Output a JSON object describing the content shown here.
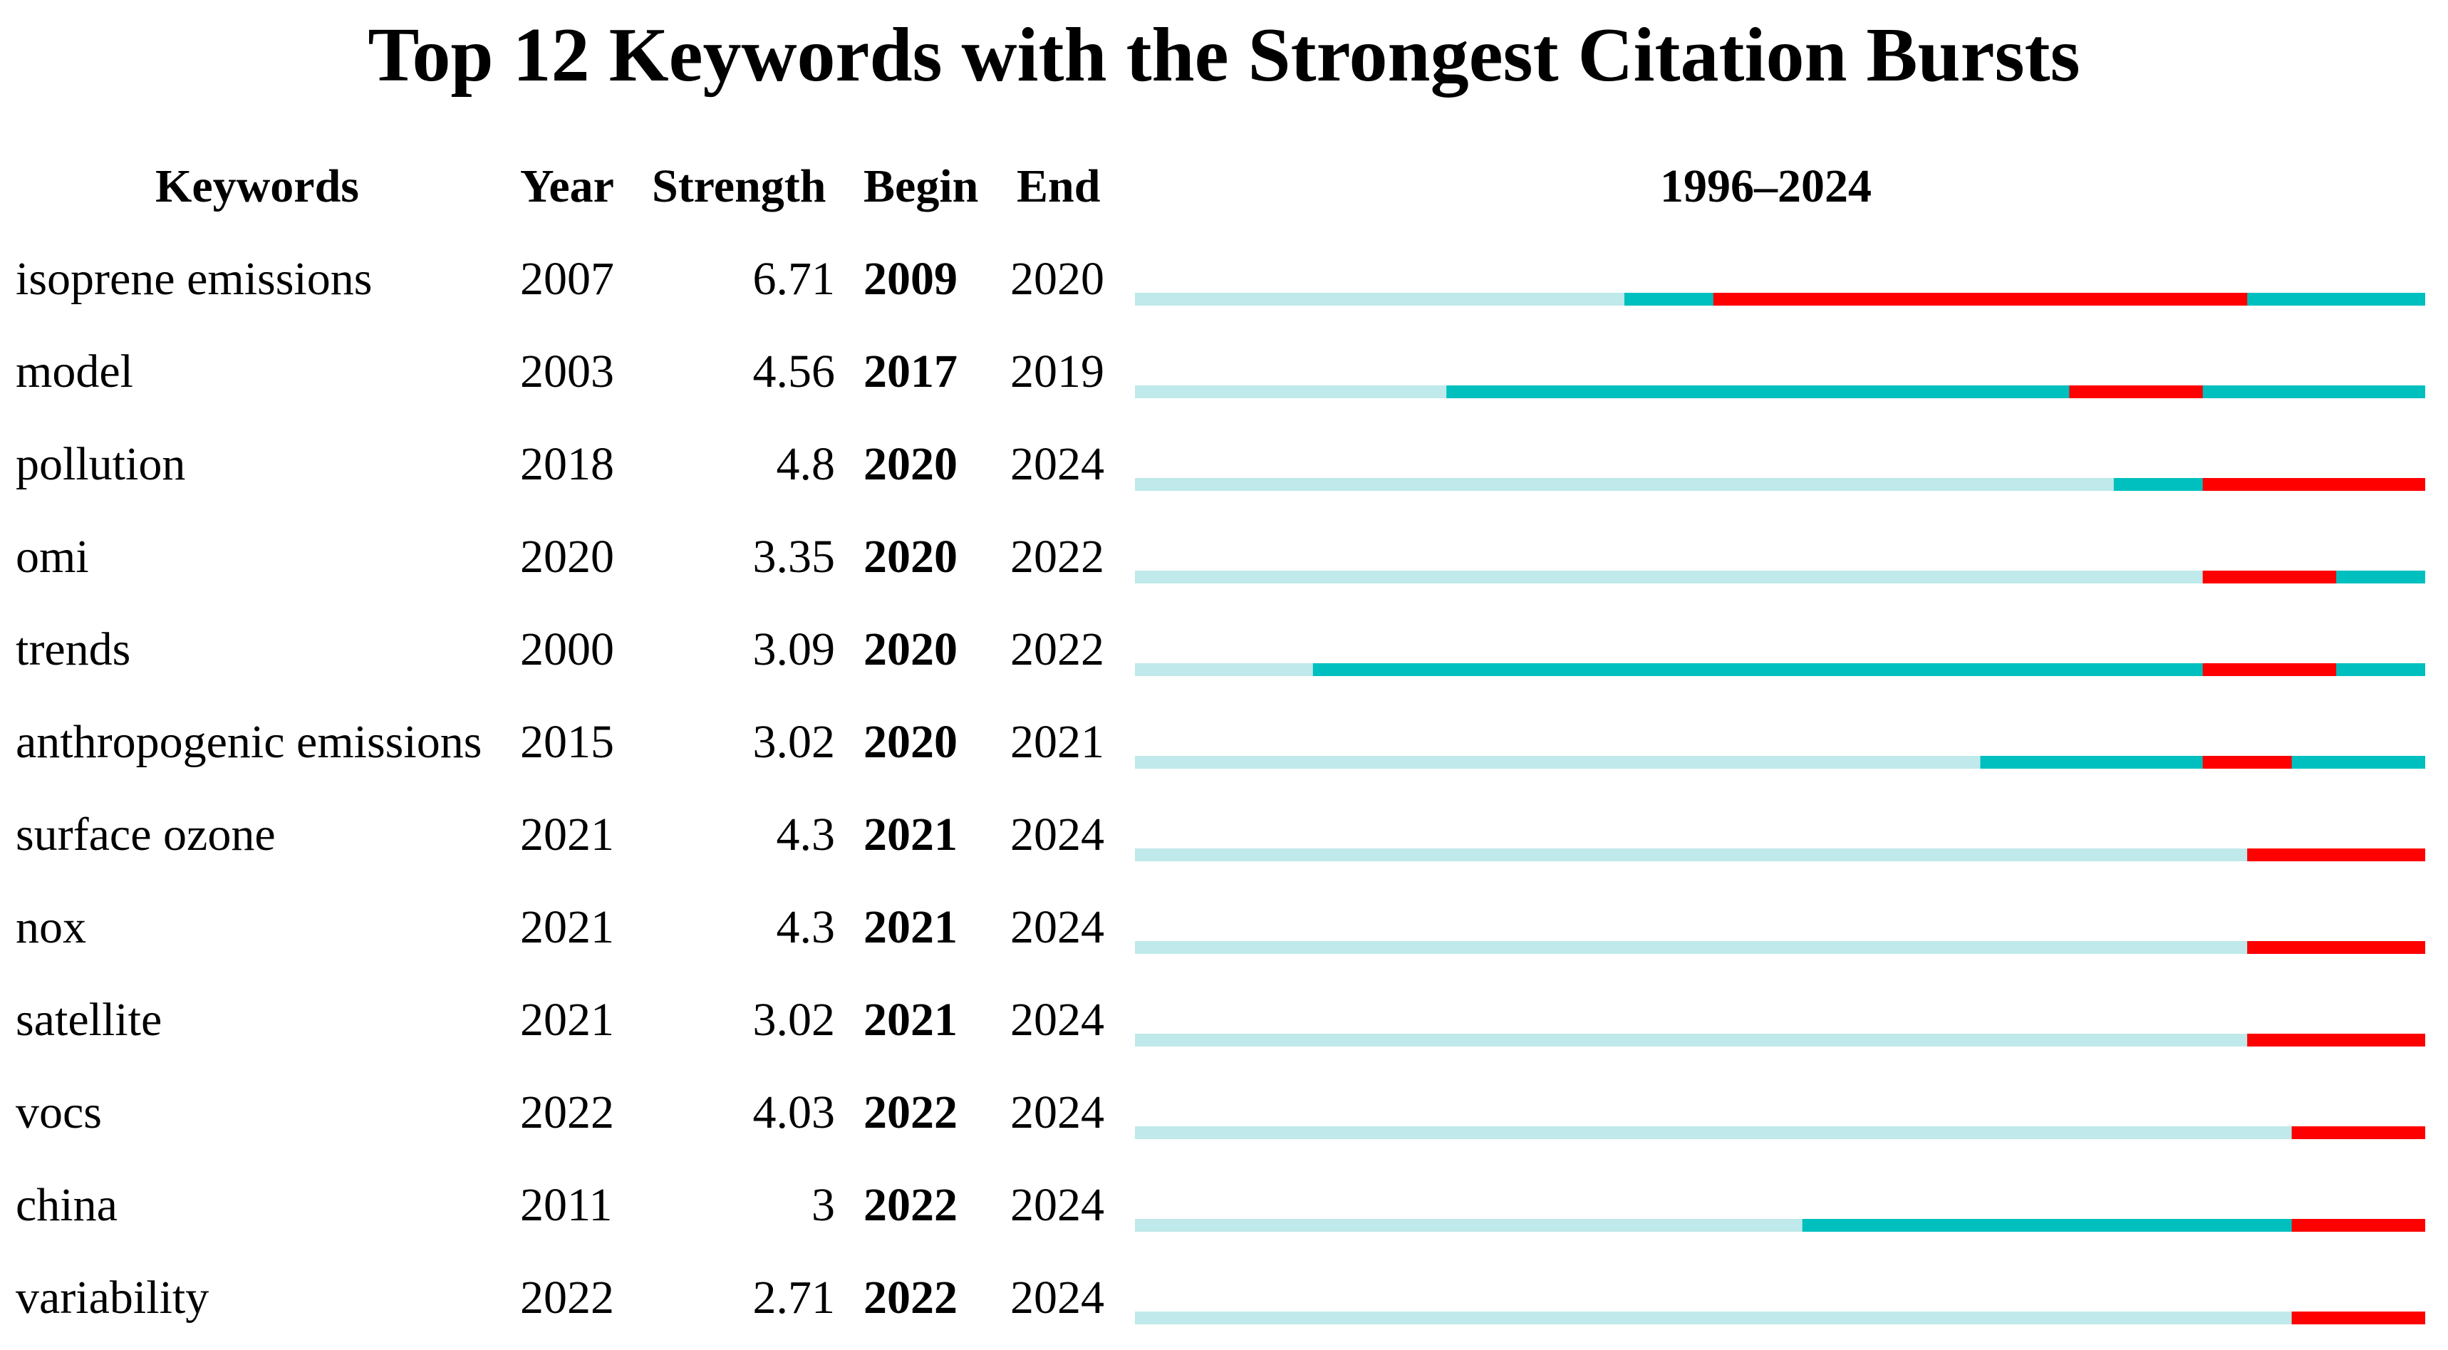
{
  "chart_data": {
    "type": "table",
    "title": "Top 12 Keywords with the Strongest Citation Bursts",
    "columns": [
      "Keywords",
      "Year",
      "Strength",
      "Begin",
      "End"
    ],
    "timeline_label": "1996–2024",
    "range": [
      1996,
      2024
    ],
    "colors": {
      "background_line": "#bfe9ea",
      "active": "#00bfbf",
      "burst": "#ff0000"
    },
    "rows": [
      {
        "keyword": "isoprene emissions",
        "year": "2007",
        "strength": "6.71",
        "begin": "2009",
        "end": "2020"
      },
      {
        "keyword": "model",
        "year": "2003",
        "strength": "4.56",
        "begin": "2017",
        "end": "2019"
      },
      {
        "keyword": "pollution",
        "year": "2018",
        "strength": "4.8",
        "begin": "2020",
        "end": "2024"
      },
      {
        "keyword": "omi",
        "year": "2020",
        "strength": "3.35",
        "begin": "2020",
        "end": "2022"
      },
      {
        "keyword": "trends",
        "year": "2000",
        "strength": "3.09",
        "begin": "2020",
        "end": "2022"
      },
      {
        "keyword": "anthropogenic emissions",
        "year": "2015",
        "strength": "3.02",
        "begin": "2020",
        "end": "2021"
      },
      {
        "keyword": "surface ozone",
        "year": "2021",
        "strength": "4.3",
        "begin": "2021",
        "end": "2024"
      },
      {
        "keyword": "nox",
        "year": "2021",
        "strength": "4.3",
        "begin": "2021",
        "end": "2024"
      },
      {
        "keyword": "satellite",
        "year": "2021",
        "strength": "3.02",
        "begin": "2021",
        "end": "2024"
      },
      {
        "keyword": "vocs",
        "year": "2022",
        "strength": "4.03",
        "begin": "2022",
        "end": "2024"
      },
      {
        "keyword": "china",
        "year": "2011",
        "strength": "3",
        "begin": "2022",
        "end": "2024"
      },
      {
        "keyword": "variability",
        "year": "2022",
        "strength": "2.71",
        "begin": "2022",
        "end": "2024"
      }
    ]
  }
}
